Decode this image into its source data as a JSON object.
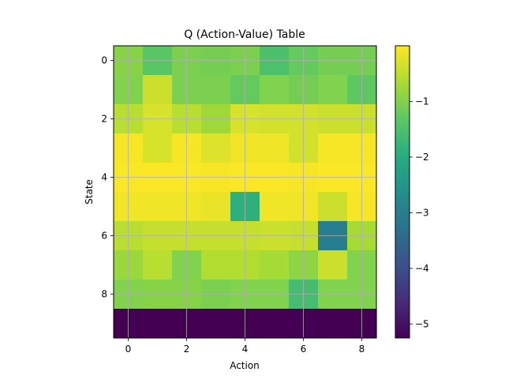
{
  "chart_data": {
    "type": "heatmap",
    "title": "Q (Action-Value) Table",
    "xlabel": "Action",
    "ylabel": "State",
    "colormap": "viridis",
    "grid": true,
    "xlim": [
      -0.5,
      8.5
    ],
    "ylim": [
      9.5,
      -0.5
    ],
    "x_ticks": [
      0,
      2,
      4,
      6,
      8
    ],
    "y_ticks": [
      0,
      2,
      4,
      6,
      8
    ],
    "colorbar": {
      "vmin": -5.25,
      "vmax": 0.0,
      "ticks": [
        -5,
        -4,
        -3,
        -2,
        -1
      ],
      "tick_labels": [
        "−5",
        "−4",
        "−3",
        "−2",
        "−1"
      ]
    },
    "states": [
      0,
      1,
      2,
      3,
      4,
      5,
      6,
      7,
      8,
      9
    ],
    "actions": [
      0,
      1,
      2,
      3,
      4,
      5,
      6,
      7,
      8
    ],
    "values": [
      [
        -0.95,
        -1.35,
        -1.05,
        -1.1,
        -1.05,
        -1.5,
        -1.25,
        -1.1,
        -1.1
      ],
      [
        -1.0,
        -0.4,
        -1.05,
        -1.05,
        -1.25,
        -1.0,
        -1.1,
        -1.0,
        -1.3
      ],
      [
        -0.55,
        -0.3,
        -0.55,
        -0.75,
        -0.3,
        -0.35,
        -0.35,
        -0.4,
        -0.4
      ],
      [
        -0.05,
        -0.3,
        -0.05,
        -0.25,
        -0.1,
        -0.1,
        -0.35,
        -0.05,
        -0.05
      ],
      [
        -0.02,
        -0.02,
        -0.02,
        -0.05,
        -0.02,
        -0.02,
        -0.05,
        -0.02,
        -0.02
      ],
      [
        -0.1,
        -0.1,
        -0.1,
        -0.15,
        -1.9,
        -0.1,
        -0.1,
        -0.4,
        -0.05
      ],
      [
        -0.55,
        -0.45,
        -0.45,
        -0.45,
        -0.45,
        -0.4,
        -0.45,
        -3.0,
        -0.7
      ],
      [
        -0.8,
        -0.55,
        -1.0,
        -0.6,
        -0.6,
        -0.7,
        -0.9,
        -0.4,
        -1.0
      ],
      [
        -1.0,
        -0.95,
        -0.95,
        -1.05,
        -1.0,
        -1.0,
        -1.6,
        -1.0,
        -1.0
      ],
      [
        -5.25,
        -5.25,
        -5.25,
        -5.25,
        -5.25,
        -5.25,
        -5.25,
        -5.25,
        -5.25
      ]
    ]
  }
}
